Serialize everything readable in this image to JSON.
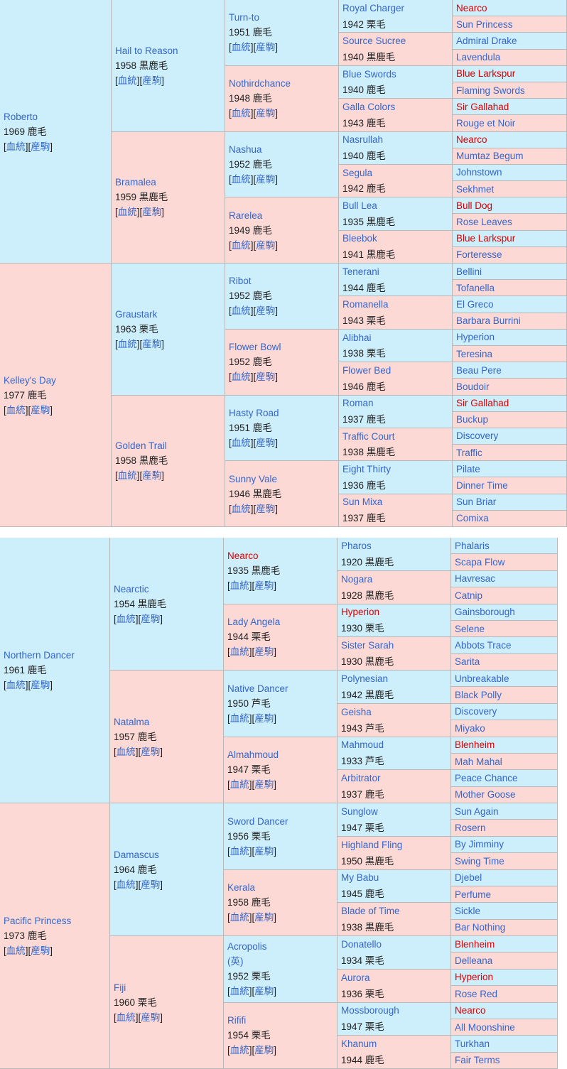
{
  "link_text": {
    "open": "[",
    "pedigree": "血統",
    "mid": "][",
    "progeny": "産駒",
    "close": "]"
  },
  "tables": [
    {
      "gens": [
        [
          {
            "name": "Roberto",
            "info": "1969 鹿毛"
          },
          {
            "name": "Kelley's Day",
            "info": "1977 鹿毛"
          }
        ],
        [
          {
            "name": "Hail to Reason",
            "info": "1958 黒鹿毛"
          },
          {
            "name": "Bramalea",
            "info": "1959 黒鹿毛"
          },
          {
            "name": "Graustark",
            "info": "1963 栗毛"
          },
          {
            "name": "Golden Trail",
            "info": "1958 黒鹿毛"
          }
        ],
        [
          {
            "name": "Turn-to",
            "info": "1951 鹿毛"
          },
          {
            "name": "Nothirdchance",
            "info": "1948 鹿毛"
          },
          {
            "name": "Nashua",
            "info": "1952 鹿毛"
          },
          {
            "name": "Rarelea",
            "info": "1949 鹿毛"
          },
          {
            "name": "Ribot",
            "info": "1952 鹿毛"
          },
          {
            "name": "Flower Bowl",
            "info": "1952 鹿毛"
          },
          {
            "name": "Hasty Road",
            "info": "1951 鹿毛"
          },
          {
            "name": "Sunny Vale",
            "info": "1946 黒鹿毛"
          }
        ],
        [
          {
            "name": "Royal Charger",
            "info": "1942 栗毛"
          },
          {
            "name": "Source Sucree",
            "info": "1940 黒鹿毛"
          },
          {
            "name": "Blue Swords",
            "info": "1940 鹿毛"
          },
          {
            "name": "Galla Colors",
            "info": "1943 鹿毛"
          },
          {
            "name": "Nasrullah",
            "info": "1940 鹿毛"
          },
          {
            "name": "Segula",
            "info": "1942 鹿毛"
          },
          {
            "name": "Bull Lea",
            "info": "1935 黒鹿毛"
          },
          {
            "name": "Bleebok",
            "info": "1941 黒鹿毛"
          },
          {
            "name": "Tenerani",
            "info": "1944 鹿毛"
          },
          {
            "name": "Romanella",
            "info": "1943 栗毛"
          },
          {
            "name": "Alibhai",
            "info": "1938 栗毛"
          },
          {
            "name": "Flower Bed",
            "info": "1946 鹿毛"
          },
          {
            "name": "Roman",
            "info": "1937 鹿毛"
          },
          {
            "name": "Traffic Court",
            "info": "1938 黒鹿毛"
          },
          {
            "name": "Eight Thirty",
            "info": "1936 鹿毛"
          },
          {
            "name": "Sun Mixa",
            "info": "1937 鹿毛"
          }
        ],
        [
          {
            "name": "Nearco",
            "color": "#dd0000"
          },
          {
            "name": "Sun Princess"
          },
          {
            "name": "Admiral Drake"
          },
          {
            "name": "Lavendula"
          },
          {
            "name": "Blue Larkspur",
            "color": "#dd0000"
          },
          {
            "name": "Flaming Swords"
          },
          {
            "name": "Sir Gallahad",
            "color": "#dd0000"
          },
          {
            "name": "Rouge et Noir"
          },
          {
            "name": "Nearco",
            "color": "#dd0000"
          },
          {
            "name": "Mumtaz Begum"
          },
          {
            "name": "Johnstown"
          },
          {
            "name": "Sekhmet"
          },
          {
            "name": "Bull Dog",
            "color": "#dd0000"
          },
          {
            "name": "Rose Leaves"
          },
          {
            "name": "Blue Larkspur",
            "color": "#dd0000"
          },
          {
            "name": "Forteresse"
          },
          {
            "name": "Bellini"
          },
          {
            "name": "Tofanella"
          },
          {
            "name": "El Greco"
          },
          {
            "name": "Barbara Burrini"
          },
          {
            "name": "Hyperion"
          },
          {
            "name": "Teresina"
          },
          {
            "name": "Beau Pere"
          },
          {
            "name": "Boudoir"
          },
          {
            "name": "Sir Gallahad",
            "color": "#dd0000"
          },
          {
            "name": "Buckup"
          },
          {
            "name": "Discovery"
          },
          {
            "name": "Traffic"
          },
          {
            "name": "Pilate"
          },
          {
            "name": "Dinner Time"
          },
          {
            "name": "Sun Briar"
          },
          {
            "name": "Comixa"
          }
        ]
      ]
    },
    {
      "gens": [
        [
          {
            "name": "Northern Dancer",
            "info": "1961 鹿毛"
          },
          {
            "name": "Pacific Princess",
            "info": "1973 鹿毛"
          }
        ],
        [
          {
            "name": "Nearctic",
            "info": "1954 黒鹿毛"
          },
          {
            "name": "Natalma",
            "info": "1957 鹿毛"
          },
          {
            "name": "Damascus",
            "info": "1964 鹿毛"
          },
          {
            "name": "Fiji",
            "info": "1960 栗毛"
          }
        ],
        [
          {
            "name": "Nearco",
            "info": "1935 黒鹿毛",
            "color": "#dd0000"
          },
          {
            "name": "Lady Angela",
            "info": "1944 栗毛"
          },
          {
            "name": "Native Dancer",
            "info": "1950 芦毛"
          },
          {
            "name": "Almahmoud",
            "info": "1947 栗毛"
          },
          {
            "name": "Sword Dancer",
            "info": "1956 栗毛"
          },
          {
            "name": "Kerala",
            "info": "1958 鹿毛"
          },
          {
            "name": "Acropolis",
            "suffix": "(英)",
            "info": "1952 栗毛"
          },
          {
            "name": "Rififi",
            "info": "1954 栗毛"
          }
        ],
        [
          {
            "name": "Pharos",
            "info": "1920 黒鹿毛"
          },
          {
            "name": "Nogara",
            "info": "1928 黒鹿毛"
          },
          {
            "name": "Hyperion",
            "info": "1930 栗毛",
            "color": "#dd0000"
          },
          {
            "name": "Sister Sarah",
            "info": "1930 黒鹿毛"
          },
          {
            "name": "Polynesian",
            "info": "1942 黒鹿毛"
          },
          {
            "name": "Geisha",
            "info": "1943 芦毛"
          },
          {
            "name": "Mahmoud",
            "info": "1933 芦毛"
          },
          {
            "name": "Arbitrator",
            "info": "1937 鹿毛"
          },
          {
            "name": "Sunglow",
            "info": "1947 栗毛"
          },
          {
            "name": "Highland Fling",
            "info": "1950 黒鹿毛"
          },
          {
            "name": "My Babu",
            "info": "1945 鹿毛"
          },
          {
            "name": "Blade of Time",
            "info": "1938 黒鹿毛"
          },
          {
            "name": "Donatello",
            "info": "1934 栗毛"
          },
          {
            "name": "Aurora",
            "info": "1936 栗毛"
          },
          {
            "name": "Mossborough",
            "info": "1947 栗毛"
          },
          {
            "name": "Khanum",
            "info": "1944 鹿毛"
          }
        ],
        [
          {
            "name": "Phalaris"
          },
          {
            "name": "Scapa Flow"
          },
          {
            "name": "Havresac"
          },
          {
            "name": "Catnip"
          },
          {
            "name": "Gainsborough"
          },
          {
            "name": "Selene"
          },
          {
            "name": "Abbots Trace"
          },
          {
            "name": "Sarita"
          },
          {
            "name": "Unbreakable"
          },
          {
            "name": "Black Polly"
          },
          {
            "name": "Discovery"
          },
          {
            "name": "Miyako"
          },
          {
            "name": "Blenheim",
            "color": "#dd0000"
          },
          {
            "name": "Mah Mahal"
          },
          {
            "name": "Peace Chance"
          },
          {
            "name": "Mother Goose"
          },
          {
            "name": "Sun Again"
          },
          {
            "name": "Rosern"
          },
          {
            "name": "By Jimminy"
          },
          {
            "name": "Swing Time"
          },
          {
            "name": "Djebel"
          },
          {
            "name": "Perfume"
          },
          {
            "name": "Sickle"
          },
          {
            "name": "Bar Nothing"
          },
          {
            "name": "Blenheim",
            "color": "#dd0000"
          },
          {
            "name": "Delleana"
          },
          {
            "name": "Hyperion",
            "color": "#dd0000"
          },
          {
            "name": "Rose Red"
          },
          {
            "name": "Nearco",
            "color": "#dd0000"
          },
          {
            "name": "All Moonshine"
          },
          {
            "name": "Turkhan"
          },
          {
            "name": "Fair Terms"
          }
        ]
      ]
    }
  ]
}
